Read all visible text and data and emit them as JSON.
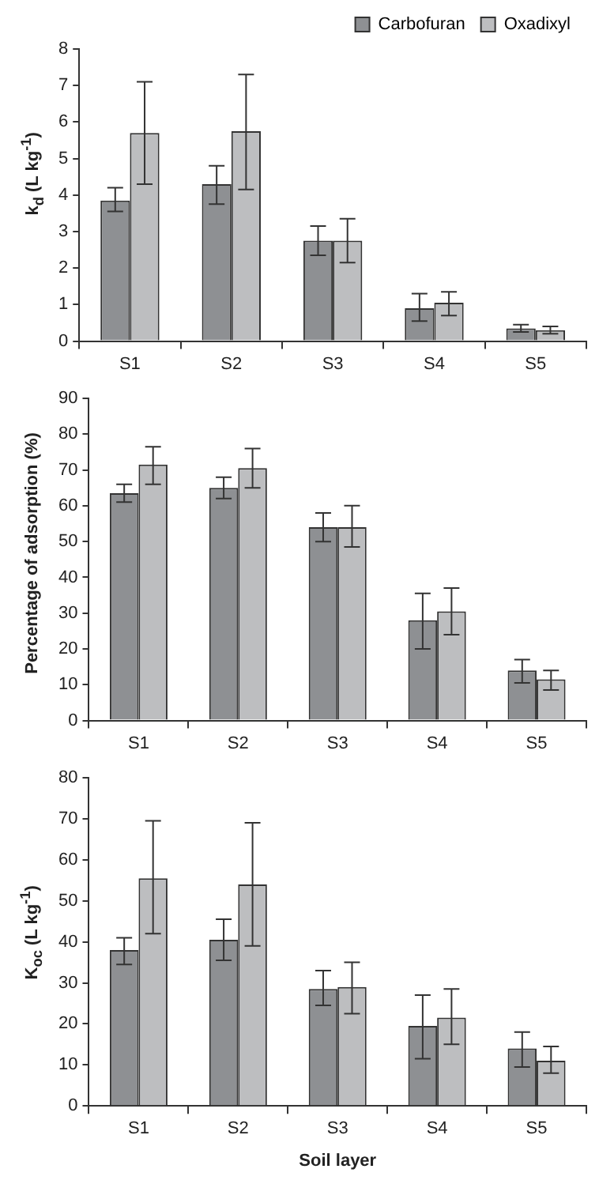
{
  "chart_data": [
    {
      "type": "bar",
      "ylabel": "k$_{d}$ (L kg$^{-1}$)",
      "categories": [
        "S1",
        "S2",
        "S3",
        "S4",
        "S5"
      ],
      "ylim": [
        0,
        8
      ],
      "yticks": [
        0,
        1,
        2,
        3,
        4,
        5,
        6,
        7,
        8
      ],
      "legend": "top right",
      "series": [
        {
          "name": "Carbofuran",
          "color": "#8e9093",
          "values": [
            3.85,
            4.3,
            2.75,
            0.9,
            0.35
          ],
          "errors": [
            [
              3.55,
              4.2
            ],
            [
              3.75,
              4.8
            ],
            [
              2.35,
              3.15
            ],
            [
              0.55,
              1.3
            ],
            [
              0.25,
              0.45
            ]
          ]
        },
        {
          "name": "Oxadixyl",
          "color": "#bdbec0",
          "values": [
            5.7,
            5.75,
            2.75,
            1.05,
            0.3
          ],
          "errors": [
            [
              4.3,
              7.1
            ],
            [
              4.15,
              7.3
            ],
            [
              2.15,
              3.35
            ],
            [
              0.7,
              1.35
            ],
            [
              0.2,
              0.4
            ]
          ]
        }
      ]
    },
    {
      "type": "bar",
      "ylabel": "Percentage of adsorption (%)",
      "categories": [
        "S1",
        "S2",
        "S3",
        "S4",
        "S5"
      ],
      "ylim": [
        0,
        90
      ],
      "yticks": [
        0,
        10,
        20,
        30,
        40,
        50,
        60,
        70,
        80,
        90
      ],
      "series": [
        {
          "color": "#8e9093",
          "values": [
            63.5,
            65,
            54,
            28,
            14
          ],
          "errors": [
            [
              61,
              66
            ],
            [
              62,
              68
            ],
            [
              50,
              58
            ],
            [
              20,
              35.5
            ],
            [
              10.5,
              17
            ]
          ]
        },
        {
          "color": "#bdbec0",
          "values": [
            71.5,
            70.5,
            54,
            30.5,
            11.5
          ],
          "errors": [
            [
              66,
              76.5
            ],
            [
              65,
              76
            ],
            [
              48.5,
              60
            ],
            [
              24,
              37
            ],
            [
              8.5,
              14
            ]
          ]
        }
      ]
    },
    {
      "type": "bar",
      "ylabel": "K$_{oc}$ (L kg$^{-1}$)",
      "xlabel": "Soil layer",
      "categories": [
        "S1",
        "S2",
        "S3",
        "S4",
        "S5"
      ],
      "ylim": [
        0,
        80
      ],
      "yticks": [
        0,
        10,
        20,
        30,
        40,
        50,
        60,
        70,
        80
      ],
      "series": [
        {
          "color": "#8e9093",
          "values": [
            38,
            40.5,
            28.5,
            19.5,
            14
          ],
          "errors": [
            [
              34.5,
              41
            ],
            [
              35.5,
              45.5
            ],
            [
              24.5,
              33
            ],
            [
              11.5,
              27
            ],
            [
              9.5,
              18
            ]
          ]
        },
        {
          "color": "#bdbec0",
          "values": [
            55.5,
            54,
            29,
            21.5,
            11
          ],
          "errors": [
            [
              42,
              69.5
            ],
            [
              39,
              69
            ],
            [
              22.5,
              35
            ],
            [
              15,
              28.5
            ],
            [
              8,
              14.5
            ]
          ]
        }
      ]
    }
  ]
}
